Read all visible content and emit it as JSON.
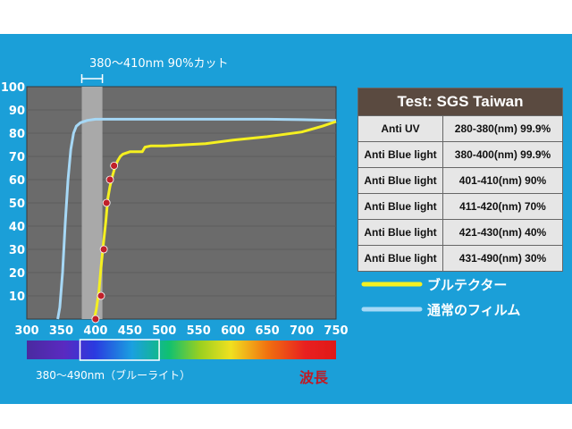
{
  "chart_data": {
    "type": "line",
    "title": "",
    "xlabel": "波長",
    "ylabel": "",
    "xlim": [
      300,
      750
    ],
    "ylim": [
      0,
      100
    ],
    "x_ticks": [
      "300",
      "350",
      "400",
      "450",
      "500",
      "550",
      "600",
      "650",
      "700",
      "750"
    ],
    "y_ticks": [
      "10",
      "20",
      "30",
      "40",
      "50",
      "60",
      "70",
      "80",
      "90",
      "100"
    ],
    "cut_band": {
      "label": "380～410nm 90%カット",
      "x_range": [
        380,
        410
      ]
    },
    "spectrum_label": "380～490nm（ブルーライト）",
    "series": [
      {
        "name": "ブルテクター",
        "color": "#f5f020",
        "points": [
          [
            398,
            0
          ],
          [
            401,
            4
          ],
          [
            405,
            12
          ],
          [
            408,
            22
          ],
          [
            411,
            31
          ],
          [
            415,
            42
          ],
          [
            418,
            52
          ],
          [
            421,
            57
          ],
          [
            425,
            62
          ],
          [
            428,
            65
          ],
          [
            432,
            68
          ],
          [
            436,
            70
          ],
          [
            440,
            71
          ],
          [
            450,
            72
          ],
          [
            460,
            72
          ],
          [
            468,
            72
          ],
          [
            472,
            74
          ],
          [
            480,
            74.5
          ],
          [
            500,
            74.5
          ],
          [
            530,
            75
          ],
          [
            560,
            75.5
          ],
          [
            600,
            77
          ],
          [
            650,
            78.5
          ],
          [
            700,
            80.5
          ],
          [
            730,
            83
          ],
          [
            750,
            85
          ]
        ],
        "markers": [
          [
            400,
            0
          ],
          [
            408,
            10
          ],
          [
            412,
            30
          ],
          [
            416,
            50
          ],
          [
            421,
            60
          ],
          [
            427,
            66
          ]
        ]
      },
      {
        "name": "通常のフィルム",
        "color": "#a6d8f6",
        "points": [
          [
            345,
            0
          ],
          [
            348,
            5
          ],
          [
            352,
            20
          ],
          [
            356,
            42
          ],
          [
            360,
            60
          ],
          [
            364,
            73
          ],
          [
            368,
            80
          ],
          [
            372,
            83
          ],
          [
            378,
            84.5
          ],
          [
            388,
            85.5
          ],
          [
            400,
            86
          ],
          [
            450,
            86
          ],
          [
            550,
            86
          ],
          [
            650,
            86
          ],
          [
            700,
            85.8
          ],
          [
            750,
            85.5
          ]
        ]
      }
    ]
  },
  "table": {
    "header": "Test: SGS Taiwan",
    "rows": [
      {
        "label": "Anti UV",
        "value": "280-380(nm) 99.9%"
      },
      {
        "label": "Anti Blue light",
        "value": "380-400(nm) 99.9%"
      },
      {
        "label": "Anti Blue light",
        "value": "401-410(nm) 90%"
      },
      {
        "label": "Anti Blue light",
        "value": "411-420(nm) 70%"
      },
      {
        "label": "Anti Blue light",
        "value": "421-430(nm) 40%"
      },
      {
        "label": "Anti Blue light",
        "value": "431-490(nm) 30%"
      }
    ]
  },
  "colors": {
    "panel": "#1b9fd8",
    "plot_bg": "#6b6b6b",
    "cut_band": "#a9a9a9",
    "marker": "#c0202a"
  }
}
